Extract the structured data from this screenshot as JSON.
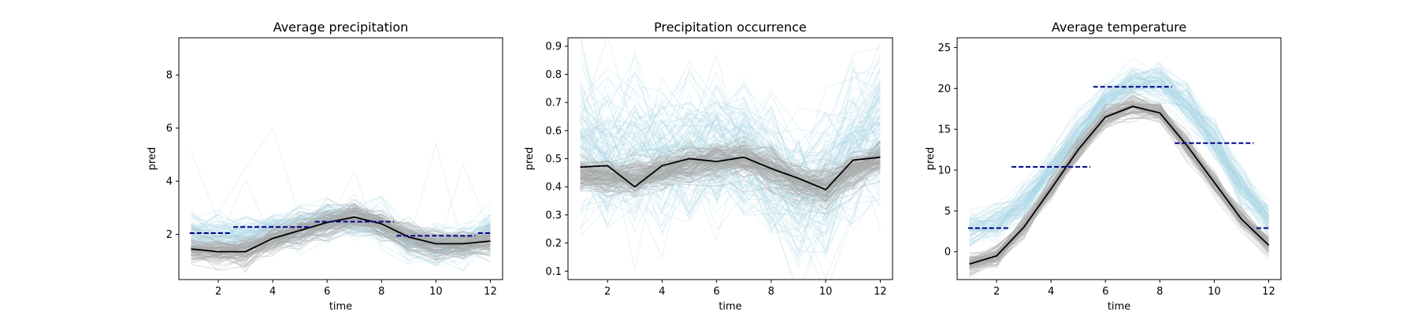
{
  "chart_data": [
    {
      "type": "line",
      "title": "Average precipitation",
      "xlabel": "time",
      "ylabel": "pred",
      "xlim": [
        0.55,
        12.45
      ],
      "ylim": [
        0.3,
        9.4
      ],
      "xticks": [
        2,
        4,
        6,
        8,
        10,
        12
      ],
      "yticks": [
        2,
        4,
        6,
        8
      ],
      "grid": false,
      "x": [
        1,
        2,
        3,
        4,
        5,
        6,
        7,
        8,
        9,
        10,
        11,
        12
      ],
      "series": [
        {
          "role": "ensemble",
          "color": "#add8e6",
          "values": [
            2.05,
            1.95,
            2.0,
            2.2,
            2.35,
            2.55,
            2.5,
            2.3,
            1.8,
            1.55,
            1.7,
            2.1
          ]
        },
        {
          "role": "ensemble",
          "color": "#a9a9a9",
          "values": [
            1.45,
            1.35,
            1.35,
            1.85,
            2.15,
            2.45,
            2.65,
            2.4,
            1.9,
            1.65,
            1.65,
            1.75
          ]
        },
        {
          "role": "observed",
          "color": "#000000",
          "values": [
            1.45,
            1.35,
            1.35,
            1.85,
            2.15,
            2.45,
            2.65,
            2.4,
            1.9,
            1.65,
            1.65,
            1.75
          ]
        },
        {
          "role": "seasonal-mean",
          "color": "#00008b",
          "style": "dashed",
          "segments": [
            {
              "x": [
                0.95,
                2.45
              ],
              "y": 2.05
            },
            {
              "x": [
                2.55,
                5.45
              ],
              "y": 2.28
            },
            {
              "x": [
                5.55,
                8.45
              ],
              "y": 2.48
            },
            {
              "x": [
                8.55,
                11.45
              ],
              "y": 1.95
            },
            {
              "x": [
                11.55,
                12.05
              ],
              "y": 2.05
            }
          ]
        }
      ]
    },
    {
      "type": "line",
      "title": "Precipitation occurrence",
      "xlabel": "time",
      "ylabel": "pred",
      "xlim": [
        0.55,
        12.45
      ],
      "ylim": [
        0.07,
        0.93
      ],
      "xticks": [
        2,
        4,
        6,
        8,
        10,
        12
      ],
      "yticks": [
        0.1,
        0.2,
        0.3,
        0.4,
        0.5,
        0.6,
        0.7,
        0.8,
        0.9
      ],
      "grid": false,
      "x": [
        1,
        2,
        3,
        4,
        5,
        6,
        7,
        8,
        9,
        10,
        11,
        12
      ],
      "series": [
        {
          "role": "ensemble",
          "color": "#add8e6",
          "values": [
            0.55,
            0.53,
            0.5,
            0.5,
            0.52,
            0.55,
            0.53,
            0.45,
            0.38,
            0.42,
            0.52,
            0.6
          ]
        },
        {
          "role": "ensemble",
          "color": "#a9a9a9",
          "values": [
            0.45,
            0.44,
            0.43,
            0.46,
            0.48,
            0.5,
            0.5,
            0.47,
            0.42,
            0.4,
            0.46,
            0.5
          ]
        },
        {
          "role": "observed",
          "color": "#000000",
          "values": [
            0.47,
            0.475,
            0.4,
            0.475,
            0.5,
            0.49,
            0.505,
            0.465,
            0.43,
            0.39,
            0.495,
            0.505
          ]
        }
      ]
    },
    {
      "type": "line",
      "title": "Average temperature",
      "xlabel": "time",
      "ylabel": "pred",
      "xlim": [
        0.55,
        12.45
      ],
      "ylim": [
        -3.4,
        26.2
      ],
      "xticks": [
        2,
        4,
        6,
        8,
        10,
        12
      ],
      "yticks": [
        0,
        5,
        10,
        15,
        20,
        25
      ],
      "grid": false,
      "x": [
        1,
        2,
        3,
        4,
        5,
        6,
        7,
        8,
        9,
        10,
        11,
        12
      ],
      "series": [
        {
          "role": "ensemble",
          "color": "#add8e6",
          "values": [
            2.8,
            3.5,
            6.0,
            10.2,
            14.5,
            18.5,
            20.6,
            20.8,
            18.0,
            13.5,
            8.0,
            4.0
          ]
        },
        {
          "role": "ensemble",
          "color": "#a9a9a9",
          "values": [
            -1.5,
            -0.5,
            3.0,
            7.7,
            12.5,
            16.5,
            17.8,
            17.0,
            13.0,
            8.5,
            4.0,
            0.8
          ]
        },
        {
          "role": "observed",
          "color": "#000000",
          "values": [
            -1.5,
            -0.5,
            3.0,
            7.7,
            12.5,
            16.5,
            17.8,
            17.0,
            13.0,
            8.5,
            4.0,
            0.8
          ]
        },
        {
          "role": "seasonal-mean",
          "color": "#00008b",
          "style": "dashed",
          "segments": [
            {
              "x": [
                0.95,
                2.45
              ],
              "y": 2.9
            },
            {
              "x": [
                2.55,
                5.45
              ],
              "y": 10.4
            },
            {
              "x": [
                5.55,
                8.45
              ],
              "y": 20.2
            },
            {
              "x": [
                8.55,
                11.45
              ],
              "y": 13.3
            },
            {
              "x": [
                11.55,
                12.05
              ],
              "y": 2.9
            }
          ]
        }
      ]
    }
  ]
}
